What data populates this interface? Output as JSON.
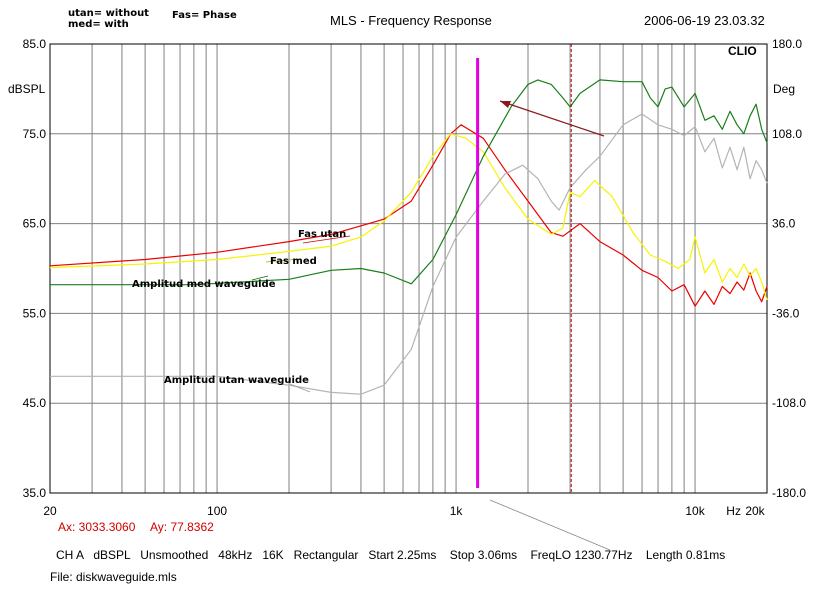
{
  "header": {
    "legend_line1": "utan= without",
    "legend_line2": "med= with",
    "legend_fas": "Fas= Phase",
    "title": "MLS - Frequency Response",
    "timestamp": "2006-06-19 23.03.32",
    "brand": "CLIO"
  },
  "cursor_readout": {
    "ax": "Ax: 3033.3060",
    "ay": "Ay: 77.8362"
  },
  "status_line": "CH A   dBSPL   Unsmoothed   48kHz   16K   Rectangular   Start 2.25ms    Stop 3.06ms    FreqLO 1230.77Hz    Length 0.81ms",
  "file_line": "File: diskwaveguide.mls",
  "colors": {
    "grid": "#808080",
    "red": "#ee0000",
    "yellow": "#f5f500",
    "green": "#1a7f1a",
    "gray": "#b4b4b4",
    "magenta": "#e000e0",
    "dashed_marker": "#c00000",
    "arrow": "#8b1a1a",
    "readout": "#d00000"
  },
  "chart_data": {
    "type": "line",
    "x_scale": "log",
    "xlim": [
      20,
      20000
    ],
    "ylim_left": [
      35,
      85
    ],
    "ylim_right": [
      -180,
      180
    ],
    "ylabel_left": "dBSPL",
    "ylabel_right": "Deg",
    "y_ticks_left": [
      "85.0",
      "75.0",
      "65.0",
      "55.0",
      "45.0",
      "35.0"
    ],
    "y_ticks_right": [
      "180.0",
      "108.0",
      "36.0",
      "-36.0",
      "-108.0",
      "-180.0"
    ],
    "x_tick_labels": [
      {
        "label": "20",
        "x": 20
      },
      {
        "label": "100",
        "x": 100
      },
      {
        "label": "1k",
        "x": 1000
      },
      {
        "label": "10k",
        "x": 10000
      },
      {
        "label": "Hz",
        "x": 14500
      },
      {
        "label": "20k",
        "x": 20000
      }
    ],
    "gate_marker_hz": 1230.77,
    "cursor_marker_hz": 3033.306,
    "series": [
      {
        "name": "Fas utan",
        "color": "red",
        "points": [
          [
            20,
            60.3
          ],
          [
            50,
            61
          ],
          [
            100,
            61.8
          ],
          [
            200,
            63
          ],
          [
            300,
            63.8
          ],
          [
            500,
            65.5
          ],
          [
            650,
            67.5
          ],
          [
            800,
            71.5
          ],
          [
            950,
            75
          ],
          [
            1050,
            76
          ],
          [
            1300,
            74.5
          ],
          [
            1600,
            71
          ],
          [
            2000,
            67.5
          ],
          [
            2500,
            64
          ],
          [
            2800,
            63.6
          ],
          [
            3300,
            65
          ],
          [
            4000,
            63
          ],
          [
            5000,
            61.5
          ],
          [
            6000,
            59.8
          ],
          [
            7000,
            59
          ],
          [
            8000,
            57.5
          ],
          [
            9000,
            58.2
          ],
          [
            10000,
            55.8
          ],
          [
            11000,
            57.5
          ],
          [
            12000,
            56
          ],
          [
            13000,
            58
          ],
          [
            14000,
            57.2
          ],
          [
            15000,
            58.5
          ],
          [
            16000,
            57.6
          ],
          [
            17000,
            59.5
          ],
          [
            18000,
            57.5
          ],
          [
            19000,
            56.3
          ],
          [
            20000,
            58
          ]
        ]
      },
      {
        "name": "Fas med",
        "color": "yellow",
        "points": [
          [
            20,
            60.1
          ],
          [
            50,
            60.5
          ],
          [
            100,
            61
          ],
          [
            200,
            61.9
          ],
          [
            300,
            62.5
          ],
          [
            400,
            63.5
          ],
          [
            500,
            65.3
          ],
          [
            650,
            68.5
          ],
          [
            800,
            72.5
          ],
          [
            950,
            75
          ],
          [
            1100,
            74.5
          ],
          [
            1300,
            73
          ],
          [
            1600,
            69
          ],
          [
            2000,
            65.5
          ],
          [
            2500,
            63.8
          ],
          [
            2800,
            64.5
          ],
          [
            3000,
            68.5
          ],
          [
            3300,
            68
          ],
          [
            3800,
            69.8
          ],
          [
            4500,
            68
          ],
          [
            5500,
            64
          ],
          [
            6500,
            61.5
          ],
          [
            7500,
            60.8
          ],
          [
            8500,
            60
          ],
          [
            9500,
            61
          ],
          [
            10000,
            63.5
          ],
          [
            11000,
            59.5
          ],
          [
            12000,
            61
          ],
          [
            13000,
            58.5
          ],
          [
            14000,
            60
          ],
          [
            15000,
            59
          ],
          [
            16000,
            60.5
          ],
          [
            17000,
            59.2
          ],
          [
            18000,
            60
          ],
          [
            19000,
            58.5
          ],
          [
            20000,
            56.5
          ]
        ]
      },
      {
        "name": "Amplitud med waveguide",
        "color": "green",
        "points": [
          [
            20,
            58.2
          ],
          [
            80,
            58.2
          ],
          [
            200,
            58.8
          ],
          [
            300,
            59.8
          ],
          [
            400,
            60
          ],
          [
            500,
            59.5
          ],
          [
            650,
            58.3
          ],
          [
            800,
            61
          ],
          [
            1000,
            66
          ],
          [
            1300,
            72.5
          ],
          [
            1700,
            78
          ],
          [
            2000,
            80.5
          ],
          [
            2200,
            81
          ],
          [
            2500,
            80.5
          ],
          [
            2800,
            79
          ],
          [
            3000,
            78
          ],
          [
            3300,
            79.5
          ],
          [
            4000,
            81
          ],
          [
            5000,
            80.8
          ],
          [
            6000,
            80.8
          ],
          [
            6500,
            79
          ],
          [
            7000,
            78
          ],
          [
            7500,
            80
          ],
          [
            8000,
            80.2
          ],
          [
            9000,
            78
          ],
          [
            10000,
            79.5
          ],
          [
            11000,
            76.5
          ],
          [
            12000,
            77
          ],
          [
            13000,
            75.5
          ],
          [
            14000,
            77.5
          ],
          [
            15000,
            76
          ],
          [
            16000,
            75
          ],
          [
            17000,
            77
          ],
          [
            18000,
            78.3
          ],
          [
            19000,
            75.5
          ],
          [
            20000,
            74
          ]
        ]
      },
      {
        "name": "Amplitud utan waveguide",
        "color": "gray",
        "points": [
          [
            20,
            48
          ],
          [
            100,
            48
          ],
          [
            200,
            47
          ],
          [
            300,
            46.2
          ],
          [
            400,
            46
          ],
          [
            500,
            47
          ],
          [
            650,
            51
          ],
          [
            800,
            58
          ],
          [
            1000,
            63.5
          ],
          [
            1300,
            67.5
          ],
          [
            1600,
            70.5
          ],
          [
            1900,
            71.5
          ],
          [
            2200,
            70
          ],
          [
            2500,
            67.5
          ],
          [
            2700,
            66.5
          ],
          [
            3000,
            69
          ],
          [
            3500,
            71
          ],
          [
            4000,
            72.5
          ],
          [
            5000,
            76
          ],
          [
            6000,
            77.2
          ],
          [
            7000,
            76
          ],
          [
            8000,
            75.5
          ],
          [
            9000,
            74.8
          ],
          [
            10000,
            75.8
          ],
          [
            11000,
            73
          ],
          [
            12000,
            74.5
          ],
          [
            13000,
            71.2
          ],
          [
            14000,
            73.5
          ],
          [
            15000,
            71
          ],
          [
            16000,
            73.5
          ],
          [
            17000,
            70
          ],
          [
            18000,
            72
          ],
          [
            19000,
            71
          ],
          [
            20000,
            69.5
          ]
        ]
      }
    ],
    "annotations": [
      {
        "text": "Fas utan",
        "color": "red"
      },
      {
        "text": "Fas med",
        "color": "yellow"
      },
      {
        "text": "Amplitud med waveguide",
        "color": "green"
      },
      {
        "text": "Amplitud utan waveguide",
        "color": "gray"
      }
    ]
  }
}
